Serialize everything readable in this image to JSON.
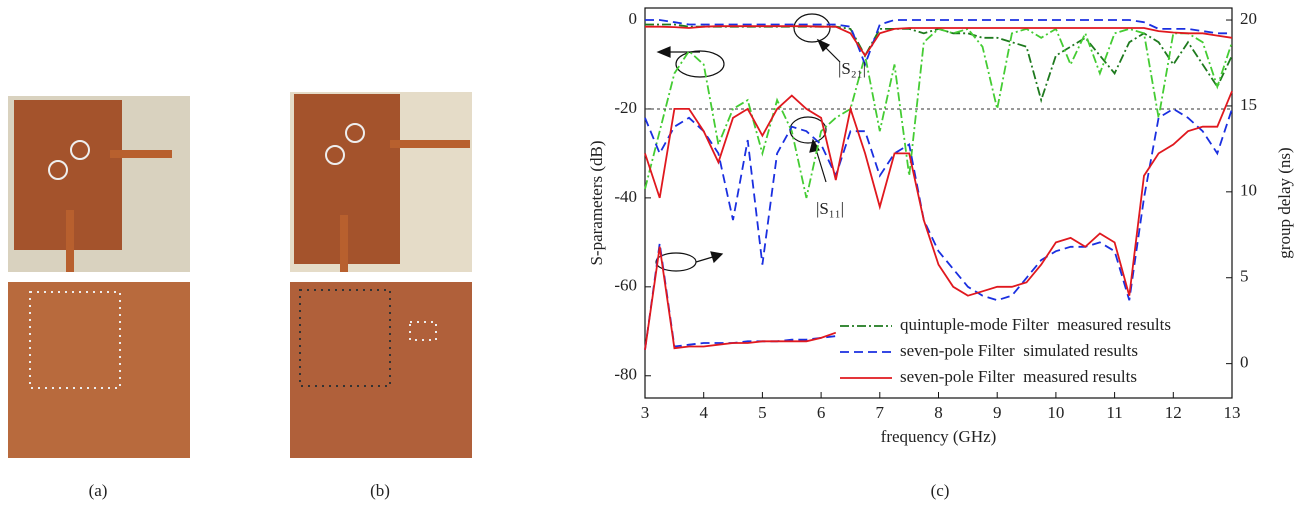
{
  "panel_labels": [
    "(a)",
    "(b)",
    "(c)"
  ],
  "chart_data": {
    "type": "line",
    "xlabel": "frequency (GHz)",
    "ylabel": "S-parameters (dB)",
    "y2label": "group delay (ns)",
    "xlim": [
      3,
      13
    ],
    "xticks": [
      3,
      4,
      5,
      6,
      7,
      8,
      9,
      10,
      11,
      12,
      13
    ],
    "ylim": [
      -85,
      2.7
    ],
    "yticks": [
      0,
      -20,
      -40,
      -60,
      -80
    ],
    "y2lim": [
      -2,
      20.7
    ],
    "y2ticks": [
      0,
      5,
      10,
      15,
      20
    ],
    "reference_line": -20,
    "annotations": [
      "|S₂₁|",
      "|S₁₁|"
    ],
    "legend": "lower right",
    "x": [
      3,
      3.25,
      3.5,
      3.75,
      4,
      4.25,
      4.5,
      4.75,
      5,
      5.25,
      5.5,
      5.75,
      6,
      6.25,
      6.5,
      6.75,
      7,
      7.25,
      7.5,
      7.75,
      8,
      8.25,
      8.5,
      8.75,
      9,
      9.25,
      9.5,
      9.75,
      10,
      10.25,
      10.5,
      10.75,
      11,
      11.25,
      11.5,
      11.75,
      12,
      12.25,
      12.5,
      12.75,
      13
    ],
    "series": [
      {
        "name": "quintuple-mode Filter  measured results",
        "color": "#1e7a1e",
        "s11_color": "#44cc33",
        "linestyle": "dashdot",
        "s21": [
          -1,
          -1,
          -1,
          -1.5,
          -1.5,
          -1.5,
          -1.5,
          -1.5,
          -1.5,
          -1.5,
          -1.5,
          -1.5,
          -1.5,
          -1.5,
          -2,
          -8,
          -2,
          -2,
          -2,
          -3,
          -2,
          -3,
          -3,
          -4,
          -4,
          -5,
          -6,
          -18,
          -8,
          -6,
          -4,
          -8,
          -12,
          -5,
          -3,
          -5,
          -10,
          -5,
          -10,
          -15,
          -8
        ],
        "s11": [
          -38,
          -25,
          -12,
          -7,
          -10,
          -28,
          -20,
          -18,
          -30,
          -18,
          -25,
          -40,
          -25,
          -22,
          -20,
          -8,
          -25,
          -10,
          -35,
          -5,
          -2,
          -3,
          -2,
          -6,
          -20,
          -3,
          -2,
          -4,
          -2,
          -10,
          -3,
          -12,
          -3,
          -2,
          -3,
          -22,
          -3,
          -3,
          -5,
          -15,
          -5
        ]
      },
      {
        "name": "seven-pole Filter  simulated results",
        "color": "#1a2fe0",
        "linestyle": "dashed",
        "s21": [
          0,
          0,
          -0.5,
          -1,
          -1,
          -1,
          -1,
          -1,
          -1,
          -1,
          -1,
          -1,
          -1,
          -1,
          -1.5,
          -10,
          -1,
          0,
          0,
          0,
          0,
          0,
          0,
          0,
          0,
          0,
          0,
          0,
          0,
          0,
          0,
          0,
          0,
          0,
          -0.5,
          -2,
          -2,
          -2,
          -2.5,
          -3,
          -3
        ],
        "s11": [
          -22,
          -30,
          -24,
          -22,
          -25,
          -30,
          -45,
          -27,
          -55,
          -30,
          -24,
          -25,
          -28,
          -35,
          -25,
          -25,
          -35,
          -30,
          -28,
          -45,
          -52,
          -56,
          -60,
          -62,
          -63,
          -62,
          -58,
          -54,
          -52,
          -51,
          -51,
          -50,
          -52,
          -63,
          -40,
          -22,
          -20,
          -22,
          -25,
          -30,
          -20
        ],
        "group_delay": [
          0.8,
          7,
          1,
          1.1,
          1.2,
          1.2,
          1.2,
          1.3,
          1.3,
          1.3,
          1.4,
          1.4,
          1.5,
          1.6,
          null,
          null,
          null,
          null,
          null,
          null,
          null,
          null,
          null,
          null,
          null,
          null,
          null,
          null,
          null,
          null,
          null,
          null,
          null,
          null,
          null,
          null,
          null,
          null,
          null,
          null,
          null
        ]
      },
      {
        "name": "seven-pole Filter  measured results",
        "color": "#e0181e",
        "linestyle": "solid",
        "s21": [
          -1.5,
          -1.5,
          -1.6,
          -1.8,
          -1.5,
          -1.4,
          -1.4,
          -1.4,
          -1.4,
          -1.4,
          -1.4,
          -1.4,
          -1.5,
          -1.5,
          -3,
          -8,
          -3,
          -2,
          -1.8,
          -1.8,
          -1.8,
          -1.8,
          -1.8,
          -1.8,
          -1.8,
          -1.8,
          -1.8,
          -1.8,
          -1.8,
          -1.8,
          -1.8,
          -1.8,
          -1.8,
          -1.8,
          -1.8,
          -2.5,
          -2.8,
          -3,
          -3,
          -3.5,
          -4
        ],
        "s11": [
          -30,
          -40,
          -20,
          -20,
          -25,
          -32,
          -22,
          -20,
          -26,
          -20,
          -17,
          -20,
          -22,
          -36,
          -20,
          -30,
          -42,
          -30,
          -30,
          -45,
          -55,
          -60,
          -62,
          -61,
          -60,
          -60,
          -59,
          -55,
          -50,
          -49,
          -51,
          -48,
          -50,
          -62,
          -35,
          -30,
          -28,
          -25,
          -24,
          -24,
          -16
        ],
        "group_delay": [
          0.8,
          6.8,
          0.9,
          1,
          1,
          1.1,
          1.2,
          1.2,
          1.3,
          1.3,
          1.3,
          1.3,
          1.5,
          1.8,
          null,
          null,
          null,
          null,
          null,
          null,
          null,
          null,
          null,
          null,
          null,
          null,
          null,
          null,
          null,
          null,
          null,
          null,
          null,
          null,
          null,
          null,
          null,
          null,
          null,
          null,
          null
        ]
      }
    ]
  }
}
